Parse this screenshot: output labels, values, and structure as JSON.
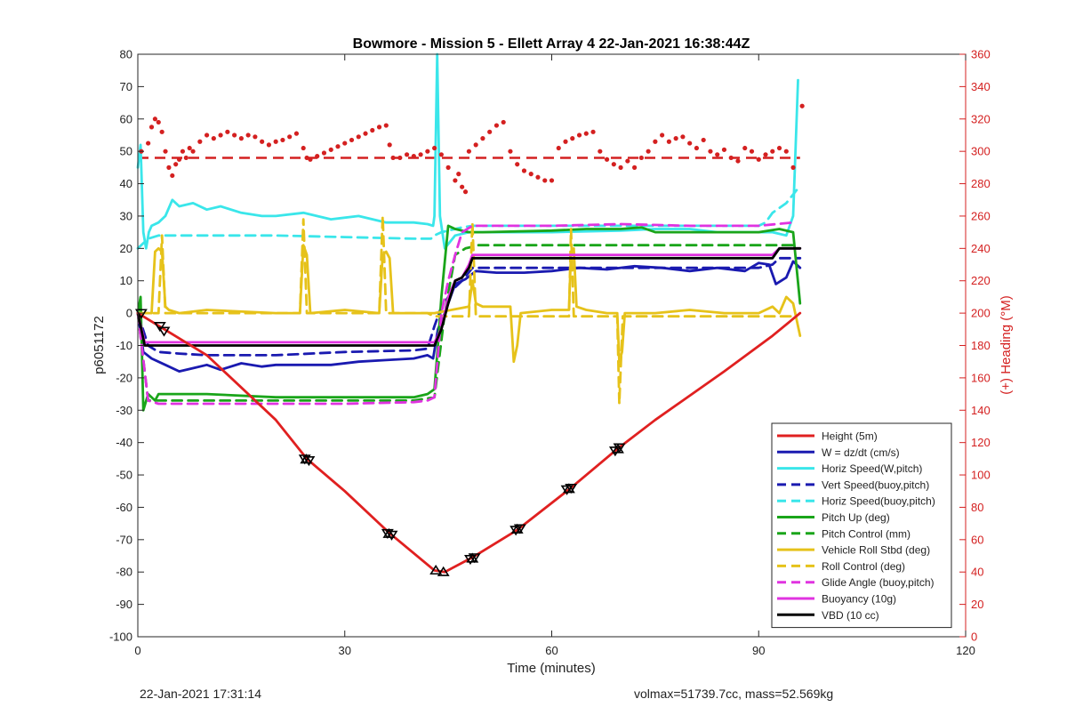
{
  "footer": {
    "timestamp": "22-Jan-2021 17:31:14",
    "stats": "volmax=51739.7cc, mass=52.569kg"
  },
  "chart_data": {
    "type": "line",
    "title": "Bowmore - Mission 5 - Ellett Array 4 22-Jan-2021 16:38:44Z",
    "xlabel": "Time (minutes)",
    "ylabel": "p6051172",
    "y2label": "(+) Heading (°M)",
    "xlim": [
      0,
      120
    ],
    "ylim": [
      -100,
      80
    ],
    "y2lim": [
      0,
      360
    ],
    "xticks": [
      0,
      30,
      60,
      90,
      120
    ],
    "yticks": [
      -100,
      -90,
      -80,
      -70,
      -60,
      -50,
      -40,
      -30,
      -20,
      -10,
      0,
      10,
      20,
      30,
      40,
      50,
      60,
      70,
      80
    ],
    "y2ticks": [
      0,
      20,
      40,
      60,
      80,
      100,
      120,
      140,
      160,
      180,
      200,
      220,
      240,
      260,
      280,
      300,
      320,
      340,
      360
    ],
    "grid": false,
    "legend_position": "bottom-right",
    "colors": {
      "red": "#e02020",
      "blue": "#1a1ab0",
      "cyan": "#3ae6ea",
      "green": "#1aa51a",
      "yellow": "#e6c21a",
      "magenta": "#e033e0",
      "black": "#000000",
      "heading_axis": "#d42020"
    },
    "series": [
      {
        "name": "Height (5m)",
        "color": "#e02020",
        "dash": false,
        "x": [
          0,
          10,
          20,
          24.5,
          30,
          36.5,
          43,
          44.5,
          48.5,
          55,
          62.5,
          69.5,
          75,
          85,
          92,
          96
        ],
        "y": [
          0,
          -13,
          -33,
          -45,
          -55,
          -68,
          -79.5,
          -80,
          -75.5,
          -67,
          -54.5,
          -42,
          -33,
          -18,
          -7,
          0
        ]
      },
      {
        "name": "W = dz/dt (cm/s)",
        "color": "#1a1ab0",
        "dash": false,
        "x": [
          0,
          0.8,
          2,
          4,
          6,
          8,
          10,
          12,
          15,
          18,
          20,
          24,
          28,
          32,
          36,
          40,
          42,
          42.8,
          43.5,
          44.5,
          46,
          47.5,
          49,
          52,
          56,
          60,
          64,
          68,
          72,
          76,
          80,
          84,
          88,
          90,
          91.5,
          92.5,
          94,
          95,
          96
        ],
        "y": [
          0,
          -12,
          -14,
          -16,
          -18,
          -17,
          -16,
          -17.5,
          -15.5,
          -16.5,
          -16,
          -16,
          -16,
          -15,
          -14.5,
          -14,
          -13,
          -14,
          -5,
          0,
          9,
          10.5,
          13,
          12.5,
          12.5,
          13,
          14,
          13.5,
          14.5,
          14,
          13,
          14,
          13,
          15.5,
          15,
          9,
          11,
          16,
          14
        ]
      },
      {
        "name": "Horiz Speed(W,pitch)",
        "color": "#3ae6ea",
        "dash": false,
        "x": [
          0,
          0.4,
          0.8,
          1.2,
          1.6,
          2,
          3,
          4,
          5,
          6,
          8,
          10,
          12,
          15,
          18,
          20,
          24,
          28,
          32,
          36,
          40,
          42,
          42.8,
          43,
          43.4,
          43.8,
          44.5,
          46,
          48,
          50,
          60,
          70,
          75,
          80,
          84,
          88,
          92,
          94,
          95,
          95.7
        ],
        "y": [
          45,
          52,
          25,
          20,
          25,
          27,
          28,
          30,
          35,
          33,
          34,
          32,
          33,
          31,
          30,
          30,
          31,
          29,
          30,
          28,
          28,
          27.5,
          27,
          30,
          80,
          30,
          20,
          24,
          25,
          25,
          25,
          25.5,
          26,
          26,
          25,
          25,
          25,
          24,
          30,
          72
        ]
      },
      {
        "name": "Vert Speed(buoy,pitch)",
        "color": "#1a1ab0",
        "dash": true,
        "x": [
          0,
          1.5,
          3,
          6,
          10,
          20,
          30,
          40,
          42,
          43,
          44,
          46,
          47,
          48.5,
          50,
          60,
          70,
          80,
          90,
          92,
          93,
          95,
          96
        ],
        "y": [
          0,
          -10,
          -12,
          -12.5,
          -13,
          -13,
          -12,
          -11.5,
          -11,
          -4,
          2,
          8,
          10,
          14,
          14,
          14,
          14,
          14,
          14,
          15,
          17,
          17,
          17
        ]
      },
      {
        "name": "Horiz Speed(buoy,pitch)",
        "color": "#3ae6ea",
        "dash": true,
        "x": [
          0,
          1.5,
          3,
          10,
          20,
          30,
          40,
          42.5,
          43,
          44,
          46,
          47,
          48.5,
          50,
          60,
          70,
          80,
          90,
          91,
          92,
          94,
          95.5
        ],
        "y": [
          20,
          23,
          24,
          24,
          24,
          23.5,
          23,
          23,
          24,
          25,
          26,
          26.5,
          27,
          27,
          27,
          27,
          27,
          27,
          28,
          31,
          34,
          38
        ]
      },
      {
        "name": "Pitch Up (deg)",
        "color": "#1aa51a",
        "dash": false,
        "x": [
          0,
          0.4,
          0.8,
          1.5,
          2.5,
          3,
          5,
          10,
          20,
          30,
          40,
          42,
          43,
          43.5,
          44,
          45,
          46,
          48,
          50,
          60,
          65,
          70,
          73,
          75,
          80,
          90,
          93,
          95,
          96
        ],
        "y": [
          0,
          5,
          -30,
          -25,
          -27,
          -25,
          -25,
          -25,
          -26,
          -26,
          -26,
          -25,
          -23.5,
          -10,
          5,
          27,
          26,
          25,
          25,
          25.5,
          26,
          26,
          26.5,
          25,
          25,
          25,
          26,
          25,
          3
        ]
      },
      {
        "name": "Pitch Control (mm)",
        "color": "#1aa51a",
        "dash": true,
        "x": [
          0,
          1.5,
          10,
          20,
          30,
          40,
          43,
          44.5,
          46,
          47.5,
          48.5,
          49,
          60,
          70,
          80,
          90,
          95
        ],
        "y": [
          0,
          -27,
          -27,
          -27,
          -27,
          -27,
          -26,
          0,
          18,
          20,
          20.5,
          21,
          21,
          21,
          21,
          21,
          21
        ]
      },
      {
        "name": "Vehicle Roll Stbd (deg)",
        "color": "#e6c21a",
        "dash": false,
        "x": [
          0,
          2,
          2.5,
          3,
          3.5,
          4,
          4.5,
          6,
          10,
          20,
          23.5,
          24,
          24.5,
          25,
          30,
          35,
          35.5,
          36,
          36.5,
          37,
          42,
          43,
          48,
          48.5,
          49,
          50,
          54,
          54.5,
          55,
          55.5,
          60,
          62.5,
          62.8,
          63.2,
          63.6,
          65,
          68,
          69.5,
          69.8,
          70.2,
          70.6,
          75,
          80,
          85,
          90,
          92,
          93,
          94,
          95,
          96
        ],
        "y": [
          0,
          0,
          19,
          20,
          19,
          2,
          1,
          0,
          1,
          0,
          0,
          21,
          18,
          0,
          1,
          0,
          18,
          19,
          17,
          0,
          0,
          0,
          2,
          10,
          3,
          2,
          2,
          -15,
          -10,
          0,
          1,
          1,
          19,
          20,
          2,
          1,
          0,
          0,
          -15,
          -12,
          0,
          0,
          1,
          0,
          0,
          2,
          0,
          5,
          3,
          -7
        ]
      },
      {
        "name": "Roll Control (deg)",
        "color": "#e6c21a",
        "dash": true,
        "x": [
          0,
          3,
          3.5,
          4,
          10,
          20,
          23.5,
          24,
          24.5,
          30,
          35,
          35.5,
          36,
          36.5,
          42,
          43,
          48,
          48.5,
          49,
          60,
          62.5,
          62.8,
          63.2,
          64,
          69.5,
          69.8,
          70.3,
          71,
          80,
          90,
          95
        ],
        "y": [
          0,
          0,
          24,
          0,
          0,
          0,
          0,
          29,
          0,
          0,
          0,
          30,
          0,
          0,
          0,
          -1,
          -1,
          28,
          -1,
          -1,
          -1,
          26,
          -1,
          -1,
          -1,
          -28,
          -1,
          -1,
          -1,
          -1,
          -1
        ]
      },
      {
        "name": "Glide Angle (buoy,pitch)",
        "color": "#e033e0",
        "dash": true,
        "x": [
          0,
          1.5,
          3,
          10,
          20,
          30,
          40,
          42,
          43,
          44,
          45,
          46,
          47,
          48.5,
          50,
          60,
          70,
          80,
          90,
          95
        ],
        "y": [
          0,
          -27,
          -28,
          -28,
          -28,
          -28,
          -27.5,
          -27,
          -26,
          0,
          10,
          18,
          25,
          27,
          27,
          27,
          27.5,
          27,
          27,
          28
        ]
      },
      {
        "name": "Buoyancy (10g)",
        "color": "#e033e0",
        "dash": false,
        "x": [
          0,
          1,
          10,
          20,
          30,
          40,
          43,
          44,
          45,
          46,
          47,
          48,
          48.5,
          60,
          70,
          80,
          90,
          92,
          93,
          96
        ],
        "y": [
          0,
          -9,
          -9,
          -9,
          -9,
          -9,
          -9,
          -5,
          5,
          10,
          11,
          15,
          18,
          18,
          18,
          18,
          18,
          18,
          20,
          20
        ]
      },
      {
        "name": "VBD (10 cc)",
        "color": "#000000",
        "dash": false,
        "x": [
          0,
          1,
          10,
          20,
          30,
          40,
          43,
          44,
          45,
          46,
          47,
          48,
          48.5,
          60,
          70,
          80,
          90,
          92,
          93,
          96
        ],
        "y": [
          0,
          -10,
          -10,
          -10,
          -10,
          -10,
          -10,
          -5,
          3,
          10,
          11,
          14,
          17,
          17,
          17,
          17,
          17,
          17,
          20,
          20
        ]
      }
    ],
    "heading_points": {
      "name": "Heading",
      "color": "#d42020",
      "axis": "right",
      "x": [
        0.5,
        1.5,
        2,
        2.5,
        3,
        3.5,
        4,
        4.5,
        5,
        5.5,
        6,
        6.5,
        7,
        7.5,
        8,
        9,
        10,
        11,
        12,
        13,
        14,
        15,
        16,
        17,
        18,
        19,
        20,
        21,
        22,
        23,
        24,
        24.5,
        25,
        26,
        27,
        28,
        29,
        30,
        31,
        32,
        33,
        34,
        35,
        36,
        36.5,
        37,
        38,
        39,
        40,
        41,
        42,
        43,
        44,
        45,
        46,
        46.5,
        47,
        47.5,
        48,
        49,
        50,
        51,
        52,
        53,
        54,
        55,
        56,
        57,
        58,
        59,
        60,
        61,
        62,
        63,
        64,
        65,
        66,
        67,
        68,
        69,
        70,
        71,
        72,
        73,
        74,
        75,
        76,
        77,
        78,
        79,
        80,
        81,
        82,
        83,
        84,
        85,
        86,
        87,
        88,
        89,
        90,
        91,
        92,
        93,
        94,
        95,
        96.3
      ],
      "y": [
        300,
        305,
        315,
        320,
        318,
        312,
        300,
        290,
        285,
        292,
        295,
        300,
        296,
        302,
        300,
        306,
        310,
        308,
        310,
        312,
        310,
        308,
        310,
        309,
        306,
        304,
        306,
        307,
        309,
        311,
        302,
        296,
        295,
        297,
        299,
        301,
        303,
        305,
        307,
        309,
        311,
        313,
        315,
        316,
        304,
        296,
        296,
        298,
        297,
        298,
        300,
        302,
        298,
        290,
        282,
        286,
        278,
        275,
        300,
        304,
        308,
        312,
        316,
        318,
        300,
        292,
        288,
        286,
        284,
        282,
        282,
        302,
        306,
        308,
        310,
        311,
        312,
        300,
        295,
        292,
        290,
        294,
        290,
        296,
        300,
        306,
        310,
        306,
        308,
        309,
        305,
        302,
        307,
        300,
        298,
        301,
        296,
        294,
        302,
        300,
        295,
        298,
        300,
        302,
        300,
        290,
        328
      ]
    },
    "heading_reference": {
      "name": "Heading ref",
      "color": "#d42020",
      "dash": true,
      "axis": "right",
      "x": [
        0,
        96
      ],
      "y": [
        296,
        296
      ]
    },
    "markers": {
      "color": "#000000",
      "down_triangles": {
        "x": [
          0.5,
          3.2,
          3.8,
          24.2,
          24.8,
          36.2,
          36.8,
          48.2,
          48.8,
          54.8,
          55.4,
          62.2,
          62.8,
          69.2,
          69.8
        ],
        "y": [
          0,
          -4,
          -5.5,
          -45,
          -45.5,
          -68,
          -68.5,
          -76,
          -75.5,
          -67,
          -66.5,
          -54.5,
          -54,
          -42.5,
          -41.5
        ]
      },
      "up_triangles": {
        "x": [
          24.4,
          36.4,
          43.2,
          44.3,
          48.5,
          55,
          62.5,
          69.6
        ],
        "y": [
          -45.2,
          -68.2,
          -79.5,
          -80,
          -75.8,
          -66.8,
          -54.3,
          -42
        ]
      }
    }
  }
}
